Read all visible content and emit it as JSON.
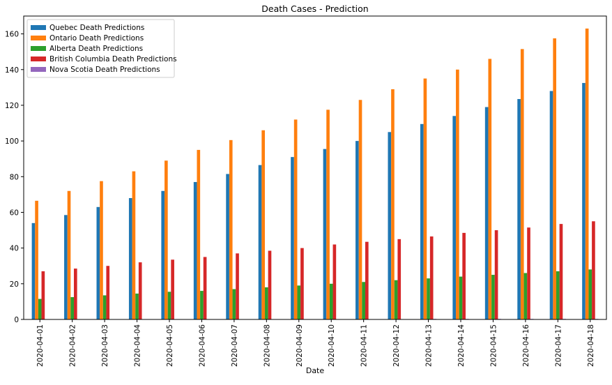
{
  "chart_data": {
    "type": "bar",
    "title": "Death Cases - Prediction",
    "xlabel": "Date",
    "ylabel": "",
    "ylim": [
      0,
      170
    ],
    "yticks": [
      0,
      20,
      40,
      60,
      80,
      100,
      120,
      140,
      160
    ],
    "grid": false,
    "legend_position": "top-left",
    "categories": [
      "2020-04-01",
      "2020-04-02",
      "2020-04-03",
      "2020-04-04",
      "2020-04-05",
      "2020-04-06",
      "2020-04-07",
      "2020-04-08",
      "2020-04-09",
      "2020-04-10",
      "2020-04-11",
      "2020-04-12",
      "2020-04-13",
      "2020-04-14",
      "2020-04-15",
      "2020-04-16",
      "2020-04-17",
      "2020-04-18"
    ],
    "series": [
      {
        "name": "Quebec Death Predictions",
        "color": "#1f77b4",
        "values": [
          54,
          58.5,
          63,
          68,
          72,
          77,
          81.5,
          86.5,
          91,
          95.5,
          100,
          105,
          109.5,
          114,
          119,
          123.5,
          128,
          132.5
        ]
      },
      {
        "name": "Ontario Death Predictions",
        "color": "#ff7f0e",
        "values": [
          66.5,
          72,
          77.5,
          83,
          89,
          95,
          100.5,
          106,
          112,
          117.5,
          123,
          129,
          135,
          140,
          146,
          151.5,
          157.5,
          163
        ]
      },
      {
        "name": "Alberta Death Predictions",
        "color": "#2ca02c",
        "values": [
          11.5,
          12.5,
          13.5,
          14.5,
          15.5,
          16,
          17,
          18,
          19,
          20,
          21,
          22,
          23,
          24,
          25,
          26,
          27,
          28
        ]
      },
      {
        "name": "British Columbia Death Predictions",
        "color": "#d62728",
        "values": [
          27,
          28.5,
          30,
          32,
          33.5,
          35,
          37,
          38.5,
          40,
          42,
          43.5,
          45,
          46.5,
          48.5,
          50,
          51.5,
          53.5,
          55
        ]
      },
      {
        "name": "Nova Scotia Death Predictions",
        "color": "#9467bd",
        "values": [
          0,
          0,
          0,
          0,
          0,
          0,
          0,
          0,
          0,
          0,
          0,
          0.2,
          0.3,
          0.3,
          0.3,
          0.3,
          0.3,
          0.3
        ]
      }
    ]
  }
}
